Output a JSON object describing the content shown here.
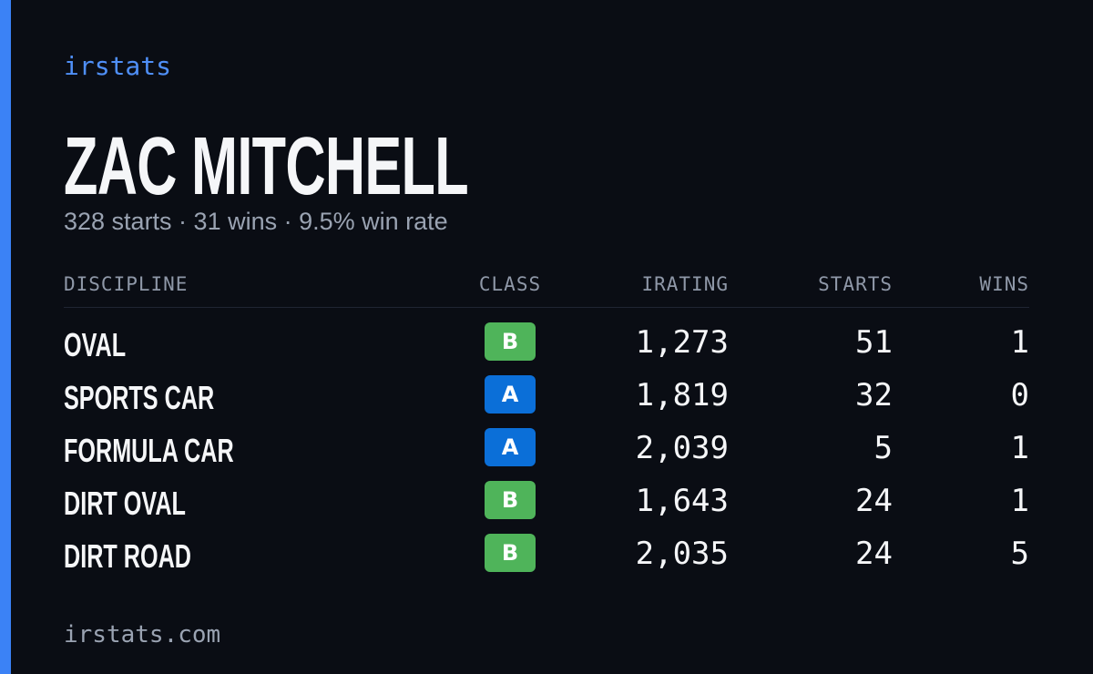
{
  "brand": "irstats",
  "driver": {
    "name": "ZAC MITCHELL",
    "summary": "328 starts · 31 wins · 9.5% win rate"
  },
  "table": {
    "headers": [
      "DISCIPLINE",
      "CLASS",
      "IRATING",
      "STARTS",
      "WINS"
    ],
    "rows": [
      {
        "discipline": "OVAL",
        "class": "B",
        "color": "#4fb45a",
        "irating": "1,273",
        "starts": "51",
        "wins": "1"
      },
      {
        "discipline": "SPORTS CAR",
        "class": "A",
        "color": "#0b6fd8",
        "irating": "1,819",
        "starts": "32",
        "wins": "0"
      },
      {
        "discipline": "FORMULA CAR",
        "class": "A",
        "color": "#0b6fd8",
        "irating": "2,039",
        "starts": "5",
        "wins": "1"
      },
      {
        "discipline": "DIRT OVAL",
        "class": "B",
        "color": "#4fb45a",
        "irating": "1,643",
        "starts": "24",
        "wins": "1"
      },
      {
        "discipline": "DIRT ROAD",
        "class": "B",
        "color": "#4fb45a",
        "irating": "2,035",
        "starts": "24",
        "wins": "5"
      }
    ]
  },
  "footer": "irstats.com"
}
